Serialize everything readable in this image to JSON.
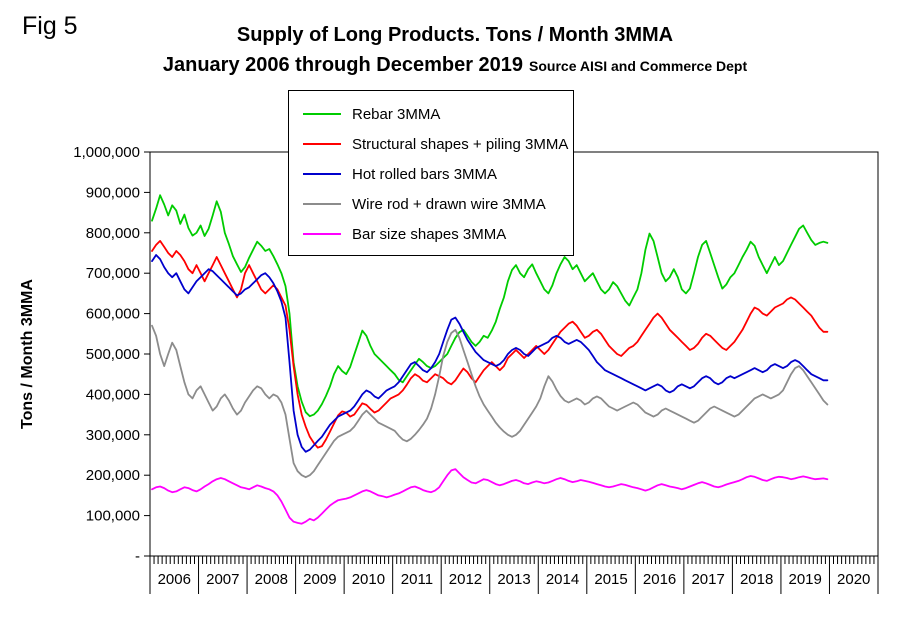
{
  "figure": {
    "fig_label": "Fig 5",
    "title_line1": "Supply of Long Products. Tons / Month 3MMA",
    "title_line2": "January 2006 through December 2019",
    "source_note": "Source AISI and Commerce Dept"
  },
  "chart_data": {
    "type": "line",
    "title": "Supply of Long Products. Tons / Month 3MMA, January 2006 through December 2019",
    "xlabel": "",
    "ylabel": "Tons / Month 3MMA",
    "ylim": [
      0,
      1000000
    ],
    "grid": false,
    "legend_position": "top-center",
    "x_interval": "month",
    "x_start": "2006-01",
    "x_end": "2019-12",
    "x_axis_span_years": 15,
    "y_tick_labels": [
      "1,000,000",
      "900,000",
      "800,000",
      "700,000",
      "600,000",
      "500,000",
      "400,000",
      "300,000",
      "200,000",
      "100,000",
      "-"
    ],
    "x_year_labels": [
      "2006",
      "2007",
      "2008",
      "2009",
      "2010",
      "2011",
      "2012",
      "2013",
      "2014",
      "2015",
      "2016",
      "2017",
      "2018",
      "2019",
      "2020"
    ],
    "series": [
      {
        "name": "Rebar 3MMA",
        "color": "#00cc00",
        "values": [
          830000,
          860000,
          893000,
          870000,
          843000,
          868000,
          855000,
          822000,
          845000,
          812000,
          793000,
          800000,
          818000,
          792000,
          810000,
          843000,
          878000,
          852000,
          800000,
          772000,
          742000,
          722000,
          703000,
          715000,
          738000,
          758000,
          778000,
          768000,
          755000,
          760000,
          742000,
          722000,
          700000,
          668000,
          600000,
          480000,
          420000,
          382000,
          356000,
          346000,
          350000,
          360000,
          376000,
          396000,
          420000,
          450000,
          470000,
          458000,
          450000,
          468000,
          498000,
          528000,
          558000,
          545000,
          520000,
          500000,
          490000,
          480000,
          470000,
          460000,
          450000,
          436000,
          430000,
          445000,
          460000,
          474000,
          488000,
          480000,
          470000,
          465000,
          470000,
          480000,
          490000,
          500000,
          520000,
          540000,
          554000,
          560000,
          545000,
          530000,
          520000,
          530000,
          545000,
          540000,
          558000,
          580000,
          612000,
          640000,
          680000,
          708000,
          720000,
          700000,
          690000,
          710000,
          722000,
          700000,
          680000,
          660000,
          650000,
          670000,
          700000,
          722000,
          740000,
          730000,
          710000,
          720000,
          700000,
          680000,
          690000,
          700000,
          680000,
          660000,
          650000,
          660000,
          678000,
          668000,
          650000,
          632000,
          620000,
          640000,
          660000,
          700000,
          758000,
          798000,
          780000,
          740000,
          700000,
          680000,
          690000,
          710000,
          690000,
          660000,
          650000,
          662000,
          700000,
          740000,
          770000,
          780000,
          750000,
          720000,
          690000,
          662000,
          672000,
          690000,
          700000,
          720000,
          740000,
          758000,
          778000,
          768000,
          740000,
          720000,
          700000,
          720000,
          740000,
          720000,
          730000,
          750000,
          770000,
          790000,
          810000,
          818000,
          800000,
          782000,
          770000,
          775000,
          778000,
          775000
        ]
      },
      {
        "name": "Structural shapes + piling 3MMA",
        "color": "#ff0000",
        "values": [
          755000,
          770000,
          780000,
          765000,
          750000,
          740000,
          755000,
          745000,
          730000,
          710000,
          700000,
          720000,
          700000,
          680000,
          700000,
          720000,
          740000,
          720000,
          700000,
          680000,
          660000,
          640000,
          660000,
          700000,
          720000,
          700000,
          680000,
          660000,
          650000,
          660000,
          670000,
          660000,
          640000,
          620000,
          560000,
          470000,
          400000,
          350000,
          320000,
          295000,
          280000,
          268000,
          272000,
          288000,
          308000,
          328000,
          348000,
          358000,
          355000,
          345000,
          350000,
          364000,
          378000,
          374000,
          364000,
          355000,
          360000,
          370000,
          380000,
          390000,
          395000,
          400000,
          410000,
          424000,
          440000,
          450000,
          444000,
          434000,
          430000,
          440000,
          450000,
          445000,
          440000,
          430000,
          425000,
          435000,
          450000,
          464000,
          455000,
          440000,
          430000,
          445000,
          460000,
          470000,
          480000,
          470000,
          460000,
          470000,
          490000,
          500000,
          510000,
          500000,
          490000,
          500000,
          510000,
          520000,
          510000,
          500000,
          510000,
          525000,
          540000,
          555000,
          565000,
          575000,
          580000,
          570000,
          555000,
          540000,
          545000,
          555000,
          560000,
          550000,
          535000,
          520000,
          510000,
          500000,
          495000,
          505000,
          515000,
          520000,
          530000,
          545000,
          560000,
          575000,
          590000,
          600000,
          590000,
          575000,
          560000,
          550000,
          540000,
          530000,
          520000,
          510000,
          515000,
          525000,
          540000,
          550000,
          545000,
          535000,
          525000,
          515000,
          510000,
          520000,
          530000,
          545000,
          560000,
          580000,
          600000,
          615000,
          610000,
          600000,
          595000,
          605000,
          615000,
          620000,
          625000,
          635000,
          640000,
          635000,
          625000,
          615000,
          605000,
          595000,
          580000,
          565000,
          555000,
          555000
        ]
      },
      {
        "name": "Hot rolled bars 3MMA",
        "color": "#0000cc",
        "values": [
          730000,
          745000,
          735000,
          715000,
          700000,
          690000,
          700000,
          680000,
          660000,
          650000,
          665000,
          680000,
          690000,
          700000,
          710000,
          705000,
          695000,
          685000,
          675000,
          665000,
          655000,
          645000,
          650000,
          660000,
          665000,
          675000,
          685000,
          695000,
          700000,
          690000,
          675000,
          655000,
          630000,
          590000,
          480000,
          360000,
          300000,
          270000,
          258000,
          263000,
          274000,
          285000,
          295000,
          310000,
          325000,
          335000,
          345000,
          350000,
          355000,
          360000,
          370000,
          385000,
          400000,
          410000,
          405000,
          395000,
          390000,
          400000,
          410000,
          415000,
          420000,
          430000,
          445000,
          460000,
          475000,
          480000,
          470000,
          460000,
          455000,
          465000,
          480000,
          500000,
          530000,
          560000,
          585000,
          590000,
          575000,
          555000,
          535000,
          520000,
          505000,
          495000,
          485000,
          480000,
          475000,
          470000,
          475000,
          485000,
          500000,
          510000,
          515000,
          510000,
          500000,
          495000,
          505000,
          515000,
          520000,
          525000,
          530000,
          540000,
          545000,
          540000,
          530000,
          525000,
          530000,
          535000,
          530000,
          520000,
          510000,
          495000,
          480000,
          470000,
          460000,
          455000,
          450000,
          445000,
          440000,
          435000,
          430000,
          425000,
          420000,
          415000,
          410000,
          415000,
          420000,
          425000,
          420000,
          410000,
          405000,
          410000,
          420000,
          425000,
          420000,
          415000,
          420000,
          430000,
          440000,
          445000,
          440000,
          430000,
          425000,
          430000,
          440000,
          445000,
          440000,
          445000,
          450000,
          455000,
          460000,
          465000,
          460000,
          455000,
          460000,
          470000,
          475000,
          470000,
          465000,
          470000,
          480000,
          485000,
          480000,
          470000,
          460000,
          450000,
          445000,
          440000,
          435000,
          435000
        ]
      },
      {
        "name": "Wire rod + drawn wire 3MMA",
        "color": "#8c8c8c",
        "values": [
          570000,
          545000,
          500000,
          470000,
          500000,
          528000,
          510000,
          470000,
          430000,
          400000,
          390000,
          410000,
          420000,
          400000,
          380000,
          360000,
          370000,
          390000,
          400000,
          385000,
          365000,
          350000,
          360000,
          380000,
          395000,
          410000,
          420000,
          415000,
          400000,
          390000,
          400000,
          395000,
          380000,
          350000,
          290000,
          230000,
          210000,
          200000,
          195000,
          200000,
          210000,
          225000,
          240000,
          255000,
          270000,
          285000,
          295000,
          300000,
          305000,
          310000,
          320000,
          335000,
          350000,
          360000,
          350000,
          340000,
          330000,
          325000,
          320000,
          315000,
          310000,
          298000,
          288000,
          284000,
          290000,
          300000,
          312000,
          325000,
          340000,
          365000,
          400000,
          445000,
          495000,
          530000,
          552000,
          560000,
          540000,
          510000,
          480000,
          450000,
          420000,
          395000,
          375000,
          360000,
          345000,
          330000,
          318000,
          308000,
          300000,
          295000,
          300000,
          310000,
          325000,
          340000,
          355000,
          370000,
          390000,
          420000,
          445000,
          432000,
          412000,
          396000,
          385000,
          380000,
          385000,
          390000,
          385000,
          375000,
          380000,
          390000,
          395000,
          390000,
          380000,
          370000,
          365000,
          360000,
          365000,
          370000,
          375000,
          380000,
          375000,
          365000,
          355000,
          350000,
          345000,
          350000,
          360000,
          365000,
          360000,
          355000,
          350000,
          345000,
          340000,
          335000,
          330000,
          335000,
          345000,
          355000,
          365000,
          370000,
          365000,
          360000,
          355000,
          350000,
          345000,
          350000,
          360000,
          370000,
          380000,
          390000,
          395000,
          400000,
          395000,
          390000,
          395000,
          400000,
          410000,
          430000,
          450000,
          465000,
          470000,
          460000,
          445000,
          430000,
          415000,
          400000,
          385000,
          375000
        ]
      },
      {
        "name": "Bar size shapes 3MMA",
        "color": "#ff00ff",
        "values": [
          165000,
          170000,
          172000,
          168000,
          162000,
          158000,
          160000,
          165000,
          170000,
          168000,
          163000,
          160000,
          165000,
          172000,
          178000,
          185000,
          190000,
          193000,
          190000,
          185000,
          180000,
          175000,
          170000,
          168000,
          165000,
          170000,
          175000,
          172000,
          168000,
          165000,
          160000,
          150000,
          135000,
          115000,
          95000,
          85000,
          82000,
          80000,
          85000,
          92000,
          88000,
          95000,
          105000,
          115000,
          125000,
          132000,
          138000,
          140000,
          142000,
          145000,
          150000,
          155000,
          160000,
          163000,
          160000,
          155000,
          150000,
          148000,
          145000,
          148000,
          152000,
          155000,
          160000,
          165000,
          170000,
          172000,
          168000,
          163000,
          160000,
          158000,
          162000,
          170000,
          185000,
          200000,
          212000,
          215000,
          205000,
          195000,
          188000,
          182000,
          180000,
          185000,
          190000,
          188000,
          183000,
          178000,
          175000,
          178000,
          182000,
          186000,
          188000,
          185000,
          180000,
          178000,
          182000,
          185000,
          183000,
          180000,
          182000,
          186000,
          190000,
          193000,
          190000,
          186000,
          183000,
          185000,
          188000,
          186000,
          184000,
          181000,
          178000,
          175000,
          172000,
          170000,
          172000,
          175000,
          178000,
          176000,
          173000,
          170000,
          168000,
          165000,
          162000,
          165000,
          170000,
          175000,
          178000,
          175000,
          172000,
          170000,
          168000,
          165000,
          168000,
          172000,
          176000,
          180000,
          183000,
          180000,
          176000,
          172000,
          170000,
          173000,
          177000,
          180000,
          183000,
          186000,
          190000,
          195000,
          198000,
          196000,
          192000,
          188000,
          186000,
          190000,
          194000,
          196000,
          195000,
          193000,
          190000,
          192000,
          195000,
          197000,
          195000,
          192000,
          190000,
          191000,
          192000,
          190000
        ]
      }
    ]
  }
}
